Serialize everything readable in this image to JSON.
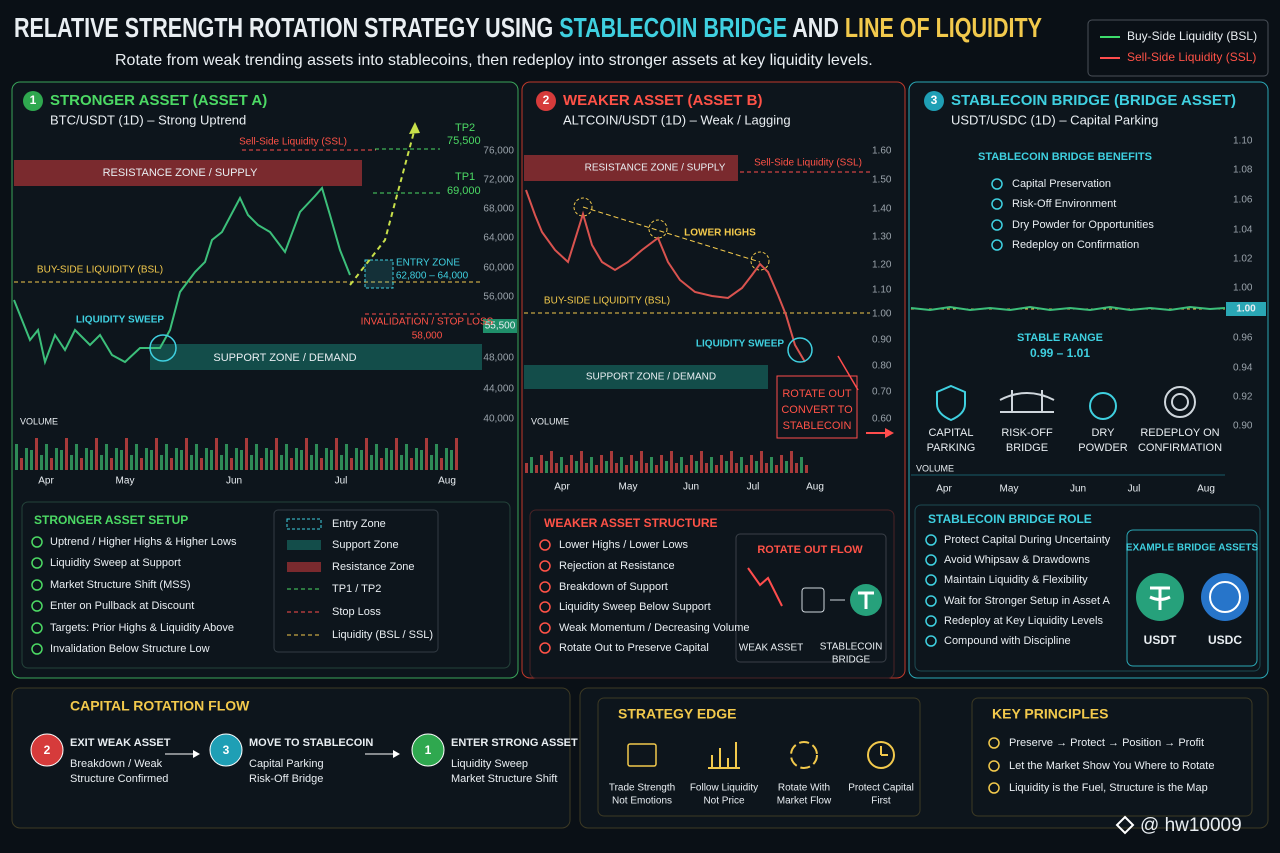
{
  "header": {
    "title": [
      "RELATIVE STRENGTH ROTATION STRATEGY USING ",
      "STABLECOIN BRIDGE",
      " AND ",
      "LINE OF LIQUIDITY"
    ],
    "subtitle": "Rotate from weak trending assets into stablecoins, then redeploy into stronger assets at key liquidity levels.",
    "legend": [
      "Buy-Side Liquidity (BSL)",
      "Sell-Side Liquidity (SSL)"
    ]
  },
  "panels": [
    {
      "number": "1",
      "title": "STRONGER ASSET (ASSET A)",
      "subtitle": "BTC/USDT (1D) – Strong Uptrend",
      "price_axis": [
        "76,000",
        "72,000",
        "68,000",
        "64,000",
        "60,000",
        "56,000",
        "48,000",
        "44,000",
        "40,000"
      ],
      "current_price": "55,500",
      "annotations": {
        "ssl": "Sell-Side Liquidity (SSL)",
        "resistance": "RESISTANCE ZONE / SUPPLY",
        "tp2": "TP2",
        "tp2_price": "75,500",
        "tp1": "TP1",
        "tp1_price": "69,000",
        "bsl": "BUY-SIDE LIQUIDITY (BSL)",
        "entry": "ENTRY ZONE",
        "entry_range": "62,800 – 64,000",
        "sweep": "LIQUIDITY SWEEP",
        "invalidation": "INVALIDATION / STOP LOSS",
        "stop_price": "58,000",
        "support": "SUPPORT ZONE / DEMAND",
        "volume": "VOLUME"
      },
      "months": [
        "Apr",
        "May",
        "Jun",
        "Jul",
        "Aug"
      ],
      "setup": {
        "title": "STRONGER ASSET SETUP",
        "items": [
          "Uptrend / Higher Highs & Higher Lows",
          "Liquidity Sweep at Support",
          "Market Structure Shift (MSS)",
          "Enter on Pullback at Discount",
          "Targets: Prior Highs & Liquidity Above",
          "Invalidation Below Structure Low"
        ],
        "key": [
          "Entry Zone",
          "Support Zone",
          "Resistance Zone",
          "TP1 / TP2",
          "Stop Loss",
          "Liquidity (BSL / SSL)"
        ]
      }
    },
    {
      "number": "2",
      "title": "WEAKER ASSET (ASSET B)",
      "subtitle": "ALTCOIN/USDT (1D) – Weak / Lagging",
      "price_axis": [
        "1.60",
        "1.50",
        "1.40",
        "1.30",
        "1.20",
        "1.10",
        "1.00",
        "0.90",
        "0.80",
        "0.70",
        "0.60"
      ],
      "annotations": {
        "ssl": "Sell-Side Liquidity (SSL)",
        "resistance": "RESISTANCE ZONE / SUPPLY",
        "lower_highs": "LOWER HIGHS",
        "bsl": "BUY-SIDE LIQUIDITY (BSL)",
        "sweep": "LIQUIDITY SWEEP",
        "support": "SUPPORT ZONE / DEMAND",
        "rotate": [
          "ROTATE OUT",
          "CONVERT TO",
          "STABLECOIN"
        ],
        "volume": "VOLUME"
      },
      "months": [
        "Apr",
        "May",
        "Jun",
        "Jul",
        "Aug"
      ],
      "structure": {
        "title": "WEAKER ASSET STRUCTURE",
        "items": [
          "Lower Highs / Lower Lows",
          "Rejection at Resistance",
          "Breakdown of Support",
          "Liquidity Sweep Below Support",
          "Weak Momentum / Decreasing Volume",
          "Rotate Out to Preserve Capital"
        ]
      },
      "flow": {
        "title": "ROTATE OUT FLOW",
        "from": "WEAK ASSET",
        "to": [
          "STABLECOIN",
          "BRIDGE"
        ]
      }
    },
    {
      "number": "3",
      "title": "STABLECOIN BRIDGE (BRIDGE ASSET)",
      "subtitle": "USDT/USDC (1D) – Capital Parking",
      "price_axis": [
        "1.10",
        "1.08",
        "1.06",
        "1.04",
        "1.02",
        "1.00",
        "0.96",
        "0.94",
        "0.92",
        "0.90"
      ],
      "current_price": "1.00",
      "benefits": {
        "title": "STABLECOIN BRIDGE BENEFITS",
        "items": [
          "Capital Preservation",
          "Risk-Off Environment",
          "Dry Powder for Opportunities",
          "Redeploy on Confirmation"
        ]
      },
      "stable_range": {
        "title": "STABLE RANGE",
        "value": "0.99 – 1.01"
      },
      "icons": [
        [
          "CAPITAL",
          "PARKING"
        ],
        [
          "RISK-OFF",
          "BRIDGE"
        ],
        [
          "DRY",
          "POWDER"
        ],
        [
          "REDEPLOY ON",
          "CONFIRMATION"
        ]
      ],
      "volume": "VOLUME",
      "months": [
        "Apr",
        "May",
        "Jun",
        "Jul",
        "Aug"
      ],
      "role": {
        "title": "STABLECOIN BRIDGE ROLE",
        "items": [
          "Protect Capital During Uncertainty",
          "Avoid Whipsaw & Drawdowns",
          "Maintain Liquidity & Flexibility",
          "Wait for Stronger Setup in Asset A",
          "Redeploy at Key Liquidity Levels",
          "Compound with Discipline"
        ]
      },
      "examples": {
        "title": "EXAMPLE BRIDGE ASSETS",
        "assets": [
          "USDT",
          "USDC"
        ]
      }
    }
  ],
  "rotation_flow": {
    "title": "CAPITAL ROTATION FLOW",
    "steps": [
      {
        "number": "2",
        "title": "EXIT WEAK ASSET",
        "lines": [
          "Breakdown / Weak",
          "Structure Confirmed"
        ]
      },
      {
        "number": "3",
        "title": "MOVE TO STABLECOIN",
        "lines": [
          "Capital Parking",
          "Risk-Off Bridge"
        ]
      },
      {
        "number": "1",
        "title": "ENTER STRONG ASSET",
        "lines": [
          "Liquidity Sweep",
          "Market Structure Shift"
        ]
      }
    ]
  },
  "strategy_edge": {
    "title": "STRATEGY EDGE",
    "items": [
      [
        "Trade Strength",
        "Not Emotions"
      ],
      [
        "Follow Liquidity",
        "Not Price"
      ],
      [
        "Rotate With",
        "Market Flow"
      ],
      [
        "Protect Capital",
        "First"
      ]
    ]
  },
  "key_principles": {
    "title": "KEY PRINCIPLES",
    "items": [
      "Preserve → Protect → Position → Profit",
      "Let the Market Show You Where to Rotate",
      "Liquidity is the Fuel, Structure is the Map"
    ]
  },
  "watermark": "@ hw10009"
}
